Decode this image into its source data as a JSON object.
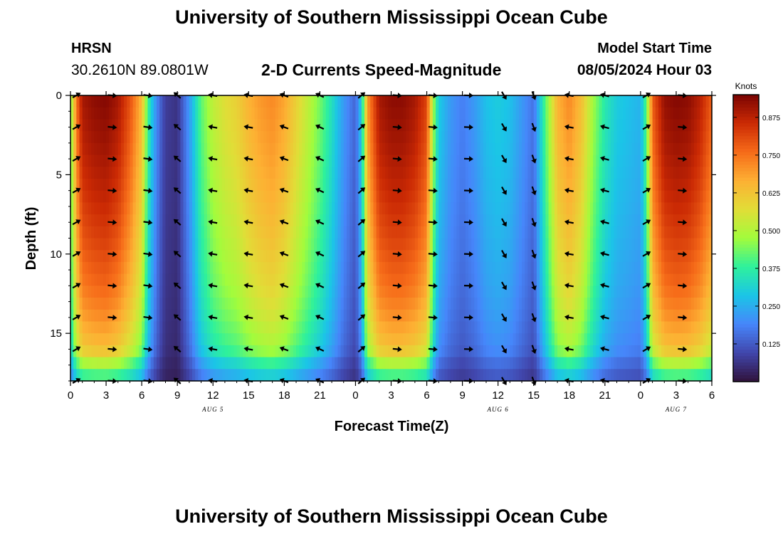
{
  "header": {
    "title": "University of Southern Mississippi Ocean Cube",
    "station": "HRSN",
    "coordinates": "30.2610N  89.0801W",
    "chart_title": "2-D Currents Speed-Magnitude",
    "model_label": "Model Start Time",
    "model_time": "08/05/2024 Hour 03",
    "footer_title": "University of Southern Mississippi Ocean Cube"
  },
  "colors": {
    "scale": [
      "#30123b",
      "#4146ac",
      "#4686fa",
      "#1bc5e7",
      "#2ef19c",
      "#a2fc3c",
      "#e1dd37",
      "#fdb033",
      "#f66b19",
      "#cb2a04",
      "#7a0403"
    ]
  },
  "chart_data": {
    "type": "heatmap",
    "title": "2-D Currents Speed-Magnitude",
    "xlabel": "Forecast Time(Z)",
    "ylabel": "Depth (ft)",
    "x_range_hours": [
      0,
      54
    ],
    "y_range_ft": [
      0,
      18
    ],
    "x_ticks": [
      {
        "hour": 0,
        "label": "0"
      },
      {
        "hour": 3,
        "label": "3"
      },
      {
        "hour": 6,
        "label": "6"
      },
      {
        "hour": 9,
        "label": "9"
      },
      {
        "hour": 12,
        "label": "12"
      },
      {
        "hour": 15,
        "label": "15"
      },
      {
        "hour": 18,
        "label": "18"
      },
      {
        "hour": 21,
        "label": "21"
      },
      {
        "hour": 24,
        "label": "0"
      },
      {
        "hour": 27,
        "label": "3"
      },
      {
        "hour": 30,
        "label": "6"
      },
      {
        "hour": 33,
        "label": "9"
      },
      {
        "hour": 36,
        "label": "12"
      },
      {
        "hour": 39,
        "label": "15"
      },
      {
        "hour": 42,
        "label": "18"
      },
      {
        "hour": 45,
        "label": "21"
      },
      {
        "hour": 48,
        "label": "0"
      },
      {
        "hour": 51,
        "label": "3"
      },
      {
        "hour": 54,
        "label": "6"
      }
    ],
    "y_ticks": [
      {
        "depth": 0,
        "label": "0"
      },
      {
        "depth": 5,
        "label": "5"
      },
      {
        "depth": 10,
        "label": "10"
      },
      {
        "depth": 15,
        "label": "15"
      }
    ],
    "date_labels": [
      {
        "hour": 12,
        "label": "AUG 5"
      },
      {
        "hour": 36,
        "label": "AUG 6"
      },
      {
        "hour": 51,
        "label": "AUG 7"
      }
    ],
    "colorbar": {
      "label": "Knots",
      "min": 0,
      "max": 0.95,
      "ticks": [
        {
          "value": 0.125,
          "label": "0.125"
        },
        {
          "value": 0.25,
          "label": "0.250"
        },
        {
          "value": 0.375,
          "label": "0.375"
        },
        {
          "value": 0.5,
          "label": "0.500"
        },
        {
          "value": 0.625,
          "label": "0.625"
        },
        {
          "value": 0.75,
          "label": "0.750"
        },
        {
          "value": 0.875,
          "label": "0.875"
        }
      ]
    },
    "speed_profile": {
      "hours": [
        0,
        0.5,
        1,
        2,
        3,
        4,
        5,
        6,
        6.5,
        7,
        7.5,
        8,
        9,
        10,
        11,
        12,
        13,
        14,
        15,
        16,
        17,
        18,
        19,
        20,
        21,
        22,
        23,
        24,
        24.5,
        25,
        26,
        27,
        28,
        29,
        30,
        30.5,
        31,
        32,
        33,
        34,
        35,
        36,
        37,
        38,
        39,
        40,
        41,
        42,
        43,
        44,
        45,
        46,
        47,
        48,
        48.5,
        49,
        50,
        51,
        52,
        53,
        54
      ],
      "surface_knots": [
        0.45,
        0.75,
        0.9,
        0.93,
        0.94,
        0.9,
        0.8,
        0.65,
        0.4,
        0.25,
        0.15,
        0.08,
        0.06,
        0.22,
        0.42,
        0.52,
        0.57,
        0.6,
        0.66,
        0.7,
        0.72,
        0.68,
        0.6,
        0.52,
        0.44,
        0.34,
        0.22,
        0.14,
        0.3,
        0.7,
        0.9,
        0.93,
        0.93,
        0.9,
        0.82,
        0.5,
        0.3,
        0.22,
        0.18,
        0.22,
        0.28,
        0.3,
        0.28,
        0.22,
        0.16,
        0.42,
        0.66,
        0.72,
        0.64,
        0.48,
        0.36,
        0.3,
        0.28,
        0.26,
        0.42,
        0.78,
        0.92,
        0.94,
        0.93,
        0.88,
        0.78
      ],
      "depth_factor_ft": [
        0,
        3,
        6,
        9,
        12,
        14,
        16,
        17,
        18
      ],
      "depth_factor": [
        1.0,
        0.97,
        0.93,
        0.88,
        0.82,
        0.76,
        0.68,
        0.52,
        0.38
      ]
    },
    "vector_times_hours": [
      0.5,
      3.5,
      6.5,
      9,
      12,
      15,
      18,
      21,
      24.5,
      27.5,
      30.5,
      33.5,
      36.5,
      39,
      42,
      45,
      48.5,
      51.5
    ],
    "vector_depths_ft": [
      0,
      2,
      4,
      6,
      8,
      10,
      12,
      14,
      16,
      18
    ],
    "vector_directions_deg": [
      -30,
      5,
      8,
      220,
      190,
      190,
      200,
      205,
      -40,
      5,
      5,
      2,
      60,
      70,
      190,
      195,
      -30,
      5
    ]
  }
}
